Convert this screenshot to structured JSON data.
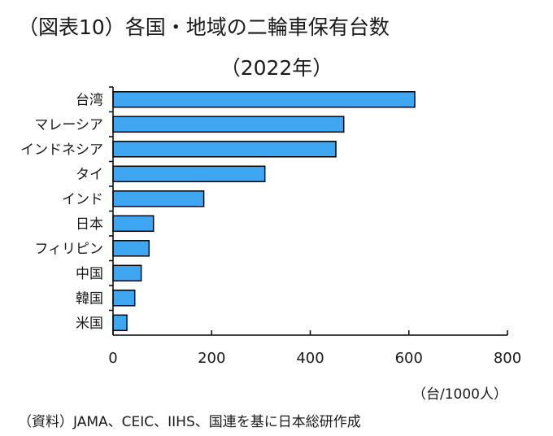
{
  "title_line1": "（図表10）各国・地域の二輪車保有台数",
  "title_line2": "（2022年）",
  "unit_label": "（台/1000人）",
  "source": "（資料）JAMA、CEIC、IIHS、国連を基に日本総研作成",
  "colors": {
    "bar": "#3fa7f2",
    "bar_stroke": "#000000",
    "axis": "#000000"
  },
  "chart_data": {
    "type": "bar",
    "orientation": "horizontal",
    "categories": [
      "台湾",
      "マレーシア",
      "インドネシア",
      "タイ",
      "インド",
      "日本",
      "フィリピン",
      "中国",
      "韓国",
      "米国"
    ],
    "values": [
      612,
      468,
      452,
      308,
      184,
      82,
      73,
      57,
      44,
      28
    ],
    "xlim": [
      0,
      800
    ],
    "xticks": [
      0,
      200,
      400,
      600,
      800
    ],
    "xlabel": "（台/1000人）",
    "grid": false,
    "legend": "none"
  }
}
